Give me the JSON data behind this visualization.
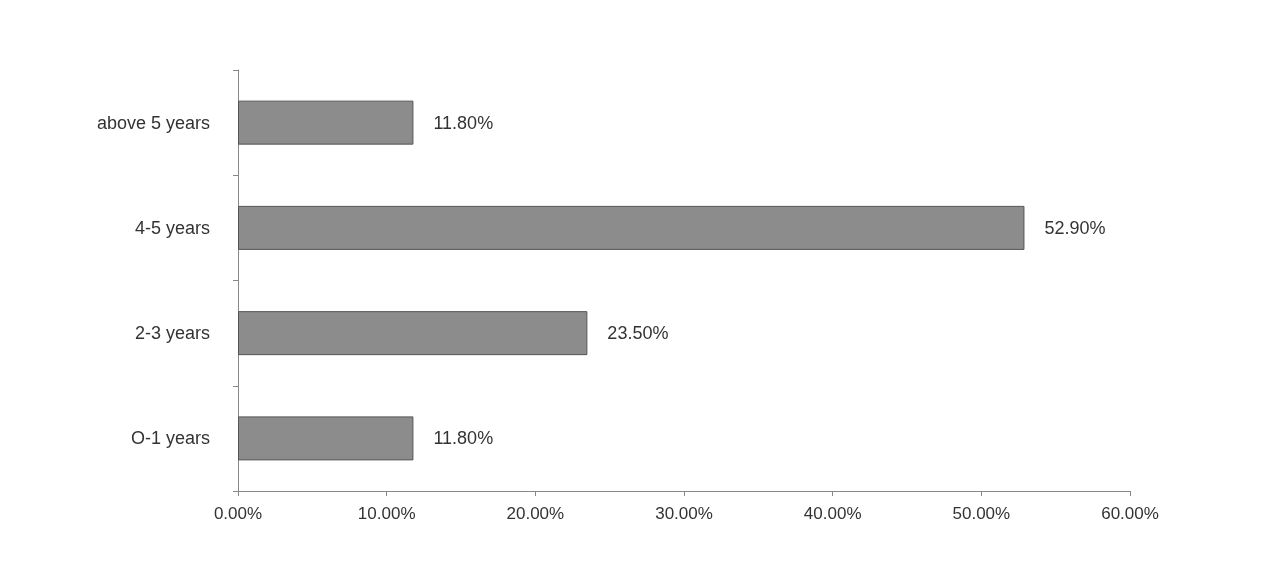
{
  "chart_data": {
    "type": "bar",
    "orientation": "horizontal",
    "categories": [
      "above 5 years",
      "4-5 years",
      "2-3 years",
      "O-1 years"
    ],
    "values": [
      11.8,
      52.9,
      23.5,
      11.8
    ],
    "value_labels": [
      "11.80%",
      "52.90%",
      "23.50%",
      "11.80%"
    ],
    "color": "#8c8c8c",
    "xlim": [
      0,
      60
    ],
    "xticks": [
      {
        "value": 0,
        "label": "0.00%"
      },
      {
        "value": 10,
        "label": "10.00%"
      },
      {
        "value": 20,
        "label": "20.00%"
      },
      {
        "value": 30,
        "label": "30.00%"
      },
      {
        "value": 40,
        "label": "40.00%"
      },
      {
        "value": 50,
        "label": "50.00%"
      },
      {
        "value": 60,
        "label": "60.00%"
      }
    ],
    "grid": false
  }
}
